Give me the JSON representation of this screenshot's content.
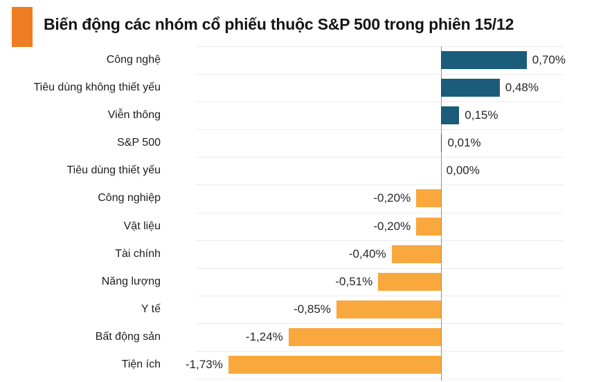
{
  "header": {
    "accent_color": "#ef7d23"
  },
  "chart_data": {
    "type": "bar",
    "orientation": "horizontal",
    "title": "Biến động các nhóm cổ phiếu thuộc S&P 500 trong phiên 15/12",
    "categories": [
      "Công nghệ",
      "Tiêu dùng không thiết yếu",
      "Viễn thông",
      "S&P 500",
      "Tiêu dùng thiết yếu",
      "Công nghiệp",
      "Vật liệu",
      "Tài chính",
      "Năng lượng",
      "Y tế",
      "Bất động sản",
      "Tiện ích"
    ],
    "values": [
      0.7,
      0.48,
      0.15,
      0.01,
      0.0,
      -0.2,
      -0.2,
      -0.4,
      -0.51,
      -0.85,
      -1.24,
      -1.73
    ],
    "value_labels": [
      "0,70%",
      "0,48%",
      "0,15%",
      "0,01%",
      "0,00%",
      "-0,20%",
      "-0,20%",
      "-0,40%",
      "-0,51%",
      "-0,85%",
      "-1,24%",
      "-1,73%"
    ],
    "xlim": [
      -2.0,
      1.0
    ],
    "grid": "horizontal",
    "legend": "none",
    "colors": {
      "positive": "#1a5c7a",
      "negative": "#f9a83e",
      "axis": "#8f8f8f",
      "gridline": "#ececec"
    }
  }
}
